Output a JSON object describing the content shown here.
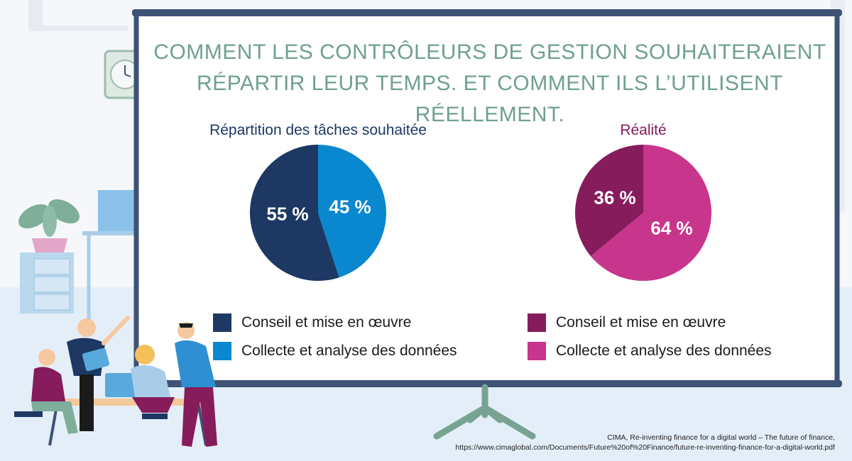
{
  "title_line1": "COMMENT LES CONTRÔLEURS DE GESTION SOUHAITERAIENT",
  "title_line2": "RÉPARTIR LEUR TEMPS. ET COMMENT ILS L’UTILISENT RÉELLEMENT.",
  "colors": {
    "title": "#6fa08f",
    "board_frame": "#3d5275",
    "easel": "#78a392",
    "wish_dark": "#1c3863",
    "wish_light": "#0a88cf",
    "real_dark": "#861c5c",
    "real_light": "#c8358c"
  },
  "chart_data": [
    {
      "type": "pie",
      "title": "Répartition des tâches souhaitée",
      "labels": [
        "Conseil et mise en œuvre",
        "Collecte et analyse des données"
      ],
      "values": [
        55,
        45
      ],
      "value_labels": [
        "55 %",
        "45 %"
      ],
      "legend": [
        "Conseil et mise en œuvre",
        "Collecte et analyse des données"
      ]
    },
    {
      "type": "pie",
      "title": "Réalité",
      "labels": [
        "Conseil et mise en œuvre",
        "Collecte et analyse des données"
      ],
      "values": [
        36,
        64
      ],
      "value_labels": [
        "36 %",
        "64 %"
      ],
      "legend": [
        "Conseil et mise en œuvre",
        "Collecte et analyse des données"
      ]
    }
  ],
  "source_line1": "CIMA, Re-inventing finance for a digital world – The future of finance,",
  "source_line2": "https://www.cimaglobal.com/Documents/Future%20of%20Finance/future-re-inventing-finance-for-a-digital-world.pdf"
}
